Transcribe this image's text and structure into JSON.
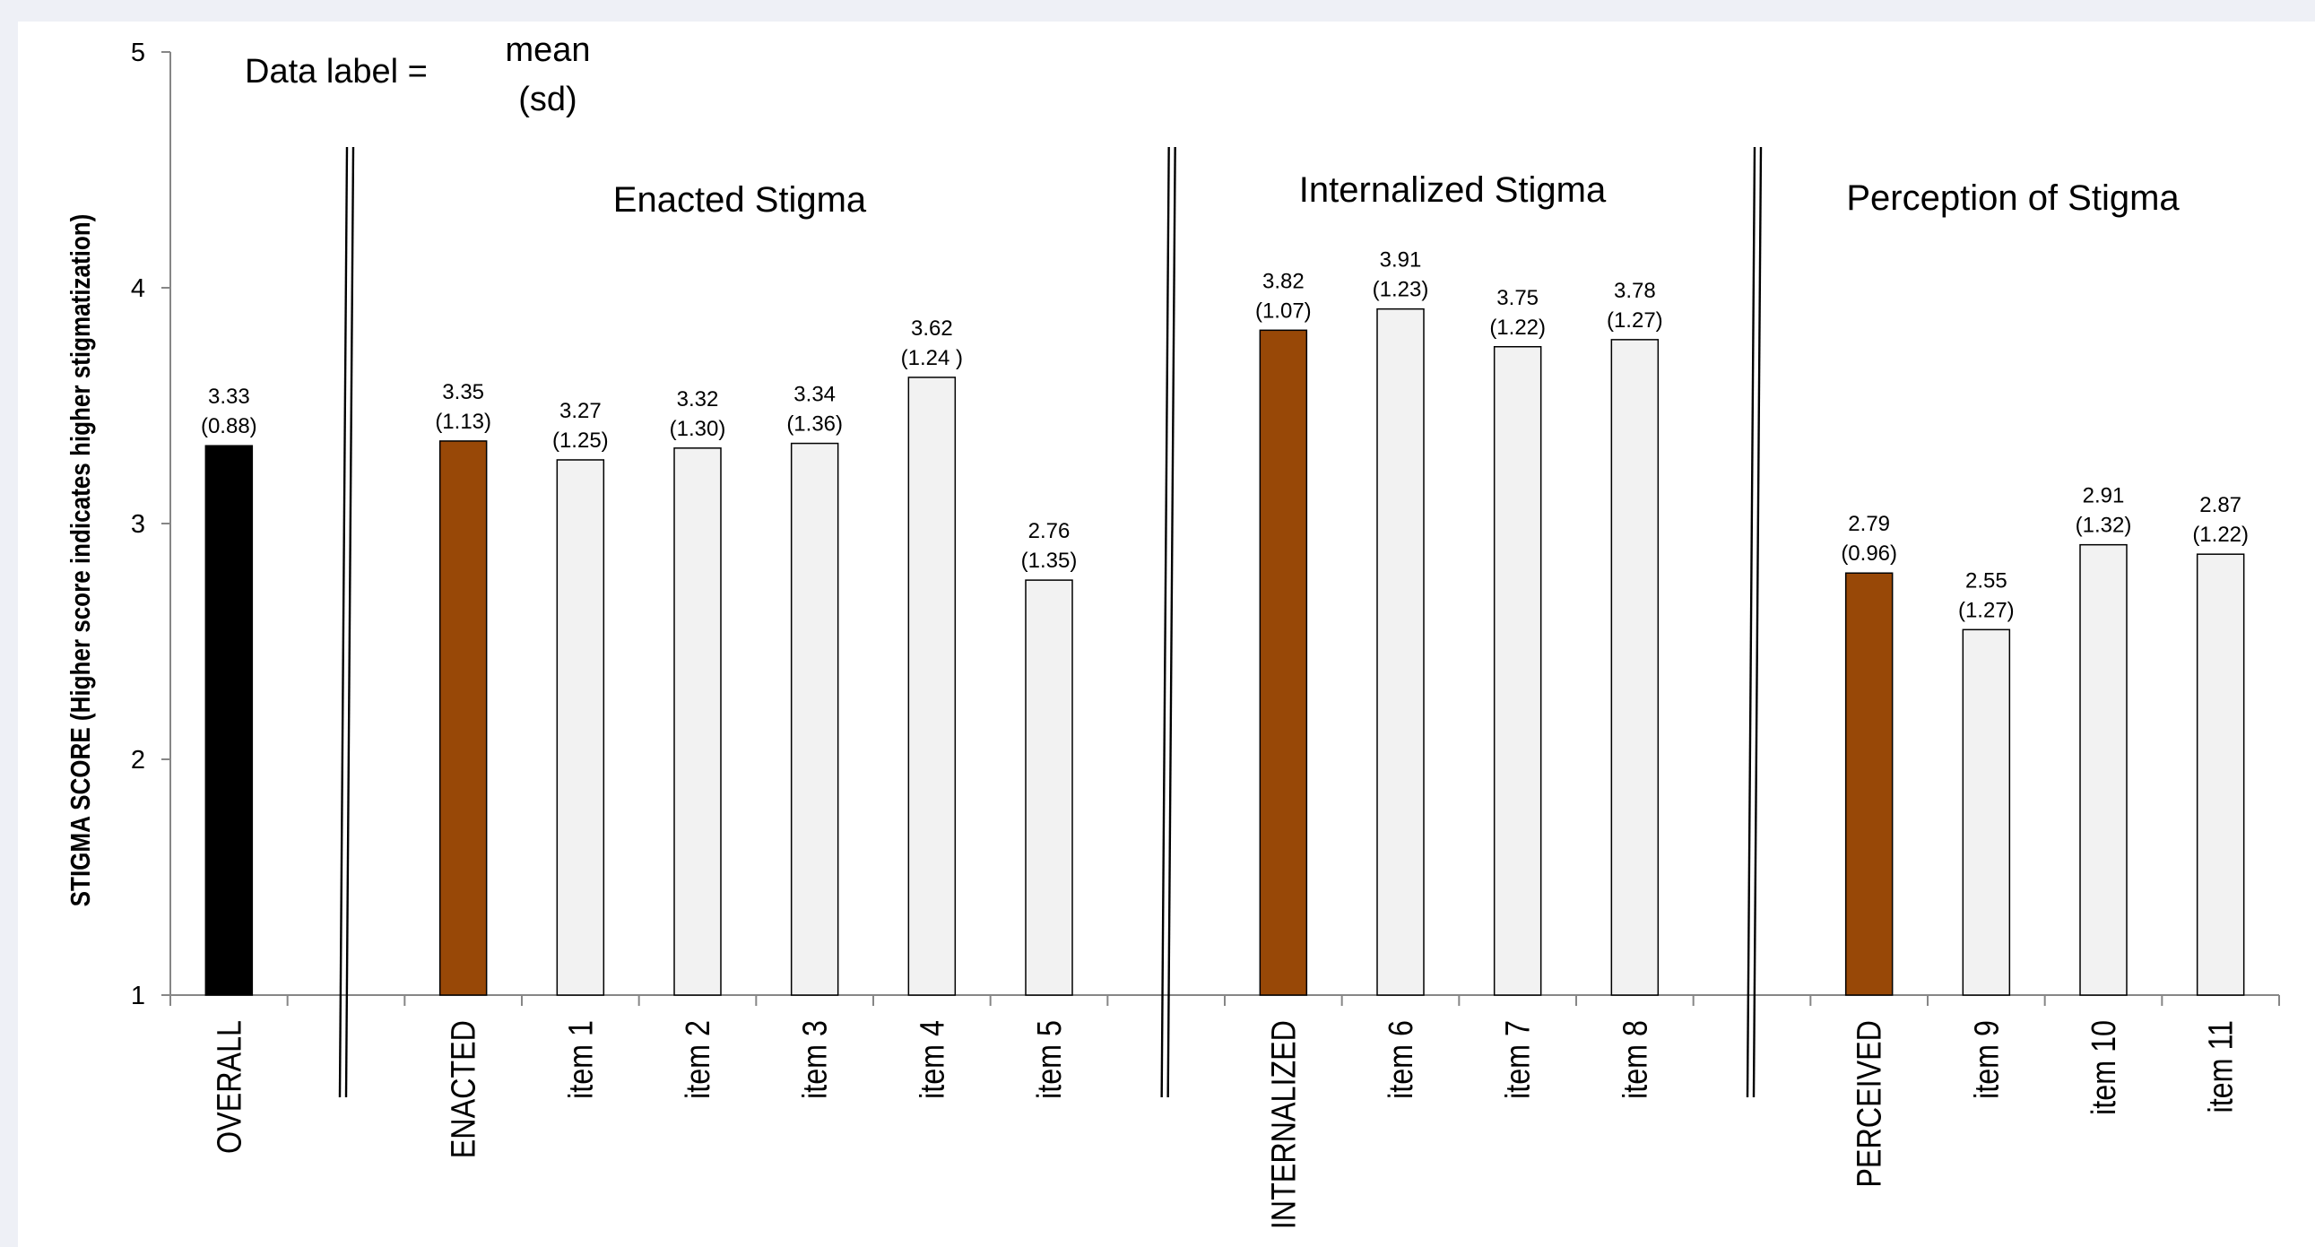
{
  "chart_data": {
    "type": "bar",
    "ylabel": "STIGMA SCORE (Higher score indicates higher stigmatization)",
    "ylim": [
      1,
      5
    ],
    "yticks": [
      1,
      2,
      3,
      4,
      5
    ],
    "legend_note": {
      "prefix": "Data label =",
      "line1": "mean",
      "line2": "(sd)"
    },
    "groups": [
      {
        "title": "Enacted Stigma"
      },
      {
        "title": "Internalized Stigma"
      },
      {
        "title": "Perception of Stigma"
      }
    ],
    "categories": [
      "OVERALL",
      "",
      "ENACTED",
      "item 1",
      "item 2",
      "item 3",
      "item 4",
      "item 5",
      "",
      "INTERNALIZED",
      "item 6",
      "item 7",
      "item 8",
      "",
      "PERCEIVED",
      "item 9",
      "item 10",
      "item 11"
    ],
    "values": [
      3.33,
      null,
      3.35,
      3.27,
      3.32,
      3.34,
      3.62,
      2.76,
      null,
      3.82,
      3.91,
      3.75,
      3.78,
      null,
      2.79,
      2.55,
      2.91,
      2.87
    ],
    "mean_labels": [
      "3.33",
      "",
      "3.35",
      "3.27",
      "3.32",
      "3.34",
      "3.62",
      "2.76",
      "",
      "3.82",
      "3.91",
      "3.75",
      "3.78",
      "",
      "2.79",
      "2.55",
      "2.91",
      "2.87"
    ],
    "sd_labels": [
      "(0.88)",
      "",
      "(1.13)",
      "(1.25)",
      "(1.30)",
      "(1.36)",
      "(1.24 )",
      "(1.35)",
      "",
      "(1.07)",
      "(1.23)",
      "(1.22)",
      "(1.27)",
      "",
      "(0.96)",
      "(1.27)",
      "(1.32)",
      "(1.22)"
    ],
    "bar_kinds": [
      "overall",
      "",
      "subscale",
      "item",
      "item",
      "item",
      "item",
      "item",
      "",
      "subscale",
      "item",
      "item",
      "item",
      "",
      "subscale",
      "item",
      "item",
      "item"
    ],
    "colors": {
      "overall": "#000000",
      "subscale": "#984807",
      "item": "#f2f2f2",
      "axis": "#868686",
      "text": "#000000"
    }
  }
}
